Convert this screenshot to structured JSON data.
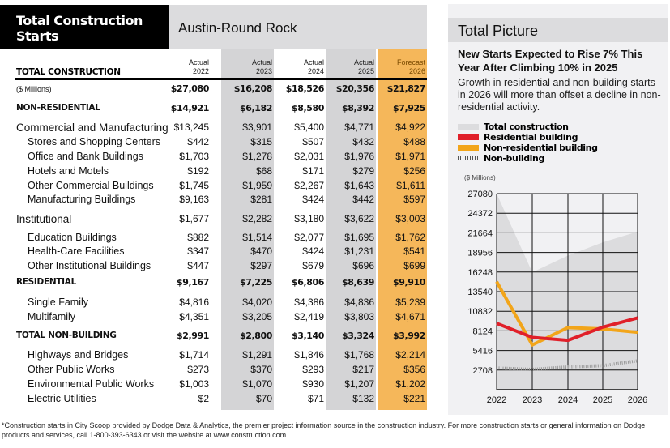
{
  "header": {
    "title": "Total Construction Starts",
    "region": "Austin-Round Rock"
  },
  "table": {
    "title": "TOTAL CONSTRUCTION",
    "units": "($ Millions)",
    "columns": [
      {
        "kind": "Actual",
        "year": "2022"
      },
      {
        "kind": "Actual",
        "year": "2023"
      },
      {
        "kind": "Actual",
        "year": "2024"
      },
      {
        "kind": "Actual",
        "year": "2025"
      },
      {
        "kind": "Forecast",
        "year": "2026"
      }
    ],
    "rows": [
      {
        "label": "($ Millions)",
        "style": "units",
        "values": [
          "$27,080",
          "$16,208",
          "$18,526",
          "$20,356",
          "$21,827"
        ]
      },
      {
        "label": "NON-RESIDENTIAL",
        "style": "bold",
        "values": [
          "$14,921",
          "$6,182",
          "$8,580",
          "$8,392",
          "$7,925"
        ]
      },
      {
        "label": "Commercial and Manufacturing",
        "style": "big",
        "values": [
          "$13,245",
          "$3,901",
          "$5,400",
          "$4,771",
          "$4,922"
        ]
      },
      {
        "label": "Stores and Shopping Centers",
        "style": "sub",
        "values": [
          "$442",
          "$315",
          "$507",
          "$432",
          "$488"
        ]
      },
      {
        "label": "Office and Bank Buildings",
        "style": "sub",
        "values": [
          "$1,703",
          "$1,278",
          "$2,031",
          "$1,976",
          "$1,971"
        ]
      },
      {
        "label": "Hotels and Motels",
        "style": "sub",
        "values": [
          "$192",
          "$68",
          "$171",
          "$279",
          "$256"
        ]
      },
      {
        "label": "Other Commercial Buildings",
        "style": "sub",
        "values": [
          "$1,745",
          "$1,959",
          "$2,267",
          "$1,643",
          "$1,611"
        ]
      },
      {
        "label": "Manufacturing Buildings",
        "style": "sub",
        "values": [
          "$9,163",
          "$281",
          "$424",
          "$442",
          "$597"
        ]
      },
      {
        "label": "Institutional",
        "style": "big",
        "values": [
          "$1,677",
          "$2,282",
          "$3,180",
          "$3,622",
          "$3,003"
        ]
      },
      {
        "label": "Education Buildings",
        "style": "sub",
        "values": [
          "$882",
          "$1,514",
          "$2,077",
          "$1,695",
          "$1,762"
        ]
      },
      {
        "label": "Health-Care Facilities",
        "style": "sub",
        "values": [
          "$347",
          "$470",
          "$424",
          "$1,231",
          "$541"
        ]
      },
      {
        "label": "Other Institutional Buildings",
        "style": "sub",
        "values": [
          "$447",
          "$297",
          "$679",
          "$696",
          "$699"
        ]
      },
      {
        "label": "RESIDENTIAL",
        "style": "bold",
        "values": [
          "$9,167",
          "$7,225",
          "$6,806",
          "$8,639",
          "$9,910"
        ]
      },
      {
        "label": "Single Family",
        "style": "sub",
        "values": [
          "$4,816",
          "$4,020",
          "$4,386",
          "$4,836",
          "$5,239"
        ]
      },
      {
        "label": "Multifamily",
        "style": "sub",
        "values": [
          "$4,351",
          "$3,205",
          "$2,419",
          "$3,803",
          "$4,671"
        ]
      },
      {
        "label": "TOTAL NON-BUILDING",
        "style": "bold",
        "values": [
          "$2,991",
          "$2,800",
          "$3,140",
          "$3,324",
          "$3,992"
        ]
      },
      {
        "label": "Highways and Bridges",
        "style": "sub",
        "values": [
          "$1,714",
          "$1,291",
          "$1,846",
          "$1,768",
          "$2,214"
        ]
      },
      {
        "label": "Other Public Works",
        "style": "sub",
        "values": [
          "$273",
          "$370",
          "$293",
          "$217",
          "$356"
        ]
      },
      {
        "label": "Environmental Public Works",
        "style": "sub",
        "values": [
          "$1,003",
          "$1,070",
          "$930",
          "$1,207",
          "$1,202"
        ]
      },
      {
        "label": "Electric Utilities",
        "style": "sub",
        "values": [
          "$2",
          "$70",
          "$71",
          "$132",
          "$221"
        ]
      }
    ]
  },
  "panel": {
    "title": "Total Picture",
    "headline": "New Starts Expected to Rise 7% This Year After Climbing 10% in 2025",
    "subhead": "Growth in residential and non-building starts in 2026 will more than offset a decline in non-residential activity."
  },
  "chart_data": {
    "type": "line",
    "ylabel": "($ Millions)",
    "categories": [
      "2022",
      "2023",
      "2024",
      "2025",
      "2026"
    ],
    "ylim": [
      0,
      27080
    ],
    "yticks": [
      2708,
      5416,
      8124,
      10832,
      13540,
      16248,
      18956,
      21664,
      24372,
      27080
    ],
    "grid": true,
    "legend_position": "top",
    "series": [
      {
        "name": "Total construction",
        "style": "area",
        "color": "#dcdcde",
        "values": [
          27080,
          16208,
          18526,
          20356,
          21827
        ]
      },
      {
        "name": "Residential building",
        "style": "line",
        "color": "#e0202a",
        "values": [
          9167,
          7225,
          6806,
          8639,
          9910
        ]
      },
      {
        "name": "Non-residential building",
        "style": "line",
        "color": "#f2a51a",
        "values": [
          14921,
          6182,
          8580,
          8392,
          7925
        ]
      },
      {
        "name": "Non-building",
        "style": "hatched",
        "color": "#999999",
        "values": [
          2991,
          2800,
          3140,
          3324,
          3992
        ]
      }
    ]
  },
  "footer": "*Construction starts in City Scoop provided by Dodge Data & Analytics, the premier project information source in the construction industry. For more construction starts or general information on Dodge products and services, call 1-800-393-6343 or visit the website at www.construction.com."
}
